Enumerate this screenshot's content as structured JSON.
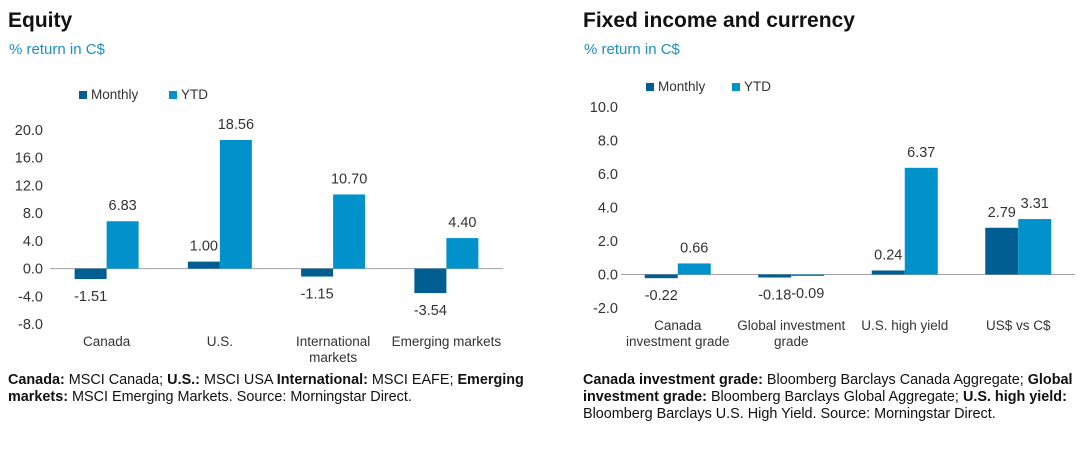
{
  "colors": {
    "monthly": "#005e92",
    "ytd": "#0192cc",
    "subtitle": "#1b8fc6",
    "axis": "#a0a0a0",
    "text": "#333333"
  },
  "equity": {
    "title": "Equity",
    "subtitle": "% return in C$",
    "footnote": [
      {
        "label": "Canada:",
        "text": " MSCI Canada; "
      },
      {
        "label": "U.S.:",
        "text": " MSCI USA "
      },
      {
        "label": "International:",
        "text": " MSCI EAFE; "
      },
      {
        "label": "Emerging markets:",
        "text": " MSCI Emerging Markets. Source: Morningstar Direct."
      }
    ]
  },
  "fixed": {
    "title": "Fixed income and currency",
    "subtitle": "% return in C$",
    "footnote": [
      {
        "label": "Canada investment grade:",
        "text": " Bloomberg Barclays Canada Aggregate; "
      },
      {
        "label": "Global investment grade:",
        "text": " Bloomberg Barclays Global Aggregate; "
      },
      {
        "label": "U.S. high yield:",
        "text": " Bloomberg Barclays U.S. High Yield. Source: Morningstar Direct."
      }
    ]
  },
  "chart_data": [
    {
      "type": "bar",
      "title": "Equity",
      "subtitle": "% return in C$",
      "categories": [
        [
          "Canada"
        ],
        [
          "U.S."
        ],
        [
          "International",
          "markets"
        ],
        [
          "Emerging markets"
        ]
      ],
      "series": [
        {
          "name": "Monthly",
          "values": [
            -1.51,
            1.0,
            -1.15,
            -3.54
          ],
          "labels": [
            "-1.51",
            "1.00",
            "-1.15",
            "-3.54"
          ]
        },
        {
          "name": "YTD",
          "values": [
            6.83,
            18.56,
            10.7,
            4.4
          ],
          "labels": [
            "6.83",
            "18.56",
            "10.70",
            "4.40"
          ]
        }
      ],
      "yticks": [
        "20.0",
        "16.0",
        "12.0",
        "8.0",
        "4.0",
        "0.0",
        "-4.0",
        "-8.0"
      ],
      "ylim": [
        -8,
        20
      ],
      "legend": [
        "Monthly",
        "YTD"
      ],
      "legend_position": "top-left",
      "grid": false
    },
    {
      "type": "bar",
      "title": "Fixed income and currency",
      "subtitle": "% return in C$",
      "categories": [
        [
          "Canada",
          "investment grade"
        ],
        [
          "Global investment",
          "grade"
        ],
        [
          "U.S. high yield"
        ],
        [
          "US$ vs C$"
        ]
      ],
      "series": [
        {
          "name": "Monthly",
          "values": [
            -0.22,
            -0.18,
            0.24,
            2.79
          ],
          "labels": [
            "-0.22",
            "-0.18",
            "0.24",
            "2.79"
          ]
        },
        {
          "name": "YTD",
          "values": [
            0.66,
            -0.09,
            6.37,
            3.31
          ],
          "labels": [
            "0.66",
            "-0.09",
            "6.37",
            "3.31"
          ]
        }
      ],
      "yticks": [
        "10.0",
        "8.0",
        "6.0",
        "4.0",
        "2.0",
        "0.0",
        "-2.0"
      ],
      "ylim": [
        -2,
        10
      ],
      "legend": [
        "Monthly",
        "YTD"
      ],
      "legend_position": "top-left",
      "grid": false
    }
  ]
}
